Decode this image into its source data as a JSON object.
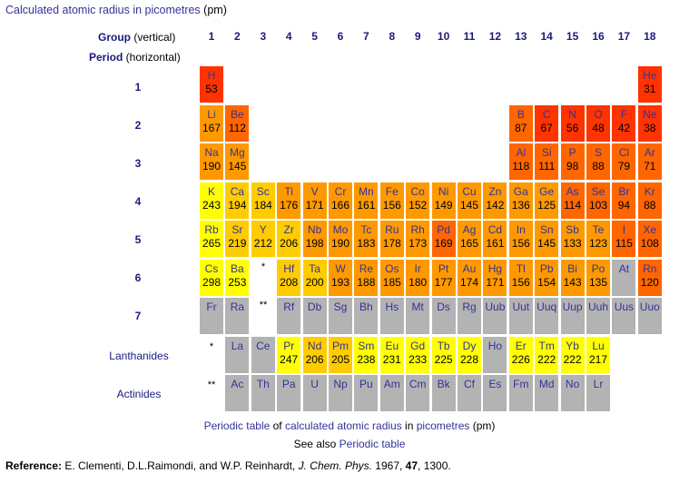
{
  "title": {
    "link": "Calculated atomic radius in picometres",
    "suffix": " (pm)"
  },
  "headers": {
    "group_word": "Group",
    "group_note": " (vertical)",
    "period_word": "Period",
    "period_note": " (horizontal)"
  },
  "groups": [
    "1",
    "2",
    "3",
    "4",
    "5",
    "6",
    "7",
    "8",
    "9",
    "10",
    "11",
    "12",
    "13",
    "14",
    "15",
    "16",
    "17",
    "18"
  ],
  "periods": [
    "1",
    "2",
    "3",
    "4",
    "5",
    "6",
    "7"
  ],
  "row_labels": {
    "lanthanides": "Lanthanides",
    "actinides": "Actinides"
  },
  "markers": {
    "lan": "*",
    "act": "**"
  },
  "colors": {
    "red": "#ff3300",
    "orange_red": "#ff6600",
    "orange": "#ff9900",
    "amber": "#ffcc00",
    "yellow": "#ffff00",
    "gray": "#b3b3b3"
  },
  "elements": [
    {
      "s": "H",
      "v": "53",
      "p": 1,
      "g": 1,
      "c": "red"
    },
    {
      "s": "He",
      "v": "31",
      "p": 1,
      "g": 18,
      "c": "red"
    },
    {
      "s": "Li",
      "v": "167",
      "p": 2,
      "g": 1,
      "c": "orange"
    },
    {
      "s": "Be",
      "v": "112",
      "p": 2,
      "g": 2,
      "c": "orange_red"
    },
    {
      "s": "B",
      "v": "87",
      "p": 2,
      "g": 13,
      "c": "orange_red"
    },
    {
      "s": "C",
      "v": "67",
      "p": 2,
      "g": 14,
      "c": "red"
    },
    {
      "s": "N",
      "v": "56",
      "p": 2,
      "g": 15,
      "c": "red"
    },
    {
      "s": "O",
      "v": "48",
      "p": 2,
      "g": 16,
      "c": "red"
    },
    {
      "s": "F",
      "v": "42",
      "p": 2,
      "g": 17,
      "c": "red"
    },
    {
      "s": "Ne",
      "v": "38",
      "p": 2,
      "g": 18,
      "c": "red"
    },
    {
      "s": "Na",
      "v": "190",
      "p": 3,
      "g": 1,
      "c": "orange"
    },
    {
      "s": "Mg",
      "v": "145",
      "p": 3,
      "g": 2,
      "c": "orange"
    },
    {
      "s": "Al",
      "v": "118",
      "p": 3,
      "g": 13,
      "c": "orange_red"
    },
    {
      "s": "Si",
      "v": "111",
      "p": 3,
      "g": 14,
      "c": "orange_red"
    },
    {
      "s": "P",
      "v": "98",
      "p": 3,
      "g": 15,
      "c": "orange_red"
    },
    {
      "s": "S",
      "v": "88",
      "p": 3,
      "g": 16,
      "c": "orange_red"
    },
    {
      "s": "Cl",
      "v": "79",
      "p": 3,
      "g": 17,
      "c": "orange_red"
    },
    {
      "s": "Ar",
      "v": "71",
      "p": 3,
      "g": 18,
      "c": "orange_red"
    },
    {
      "s": "K",
      "v": "243",
      "p": 4,
      "g": 1,
      "c": "yellow"
    },
    {
      "s": "Ca",
      "v": "194",
      "p": 4,
      "g": 2,
      "c": "amber"
    },
    {
      "s": "Sc",
      "v": "184",
      "p": 4,
      "g": 3,
      "c": "amber"
    },
    {
      "s": "Ti",
      "v": "176",
      "p": 4,
      "g": 4,
      "c": "orange"
    },
    {
      "s": "V",
      "v": "171",
      "p": 4,
      "g": 5,
      "c": "orange"
    },
    {
      "s": "Cr",
      "v": "166",
      "p": 4,
      "g": 6,
      "c": "orange"
    },
    {
      "s": "Mn",
      "v": "161",
      "p": 4,
      "g": 7,
      "c": "orange"
    },
    {
      "s": "Fe",
      "v": "156",
      "p": 4,
      "g": 8,
      "c": "orange"
    },
    {
      "s": "Co",
      "v": "152",
      "p": 4,
      "g": 9,
      "c": "orange"
    },
    {
      "s": "Ni",
      "v": "149",
      "p": 4,
      "g": 10,
      "c": "orange"
    },
    {
      "s": "Cu",
      "v": "145",
      "p": 4,
      "g": 11,
      "c": "orange"
    },
    {
      "s": "Zn",
      "v": "142",
      "p": 4,
      "g": 12,
      "c": "orange"
    },
    {
      "s": "Ga",
      "v": "136",
      "p": 4,
      "g": 13,
      "c": "orange"
    },
    {
      "s": "Ge",
      "v": "125",
      "p": 4,
      "g": 14,
      "c": "orange"
    },
    {
      "s": "As",
      "v": "114",
      "p": 4,
      "g": 15,
      "c": "orange_red"
    },
    {
      "s": "Se",
      "v": "103",
      "p": 4,
      "g": 16,
      "c": "orange_red"
    },
    {
      "s": "Br",
      "v": "94",
      "p": 4,
      "g": 17,
      "c": "orange_red"
    },
    {
      "s": "Kr",
      "v": "88",
      "p": 4,
      "g": 18,
      "c": "orange_red"
    },
    {
      "s": "Rb",
      "v": "265",
      "p": 5,
      "g": 1,
      "c": "yellow"
    },
    {
      "s": "Sr",
      "v": "219",
      "p": 5,
      "g": 2,
      "c": "amber"
    },
    {
      "s": "Y",
      "v": "212",
      "p": 5,
      "g": 3,
      "c": "amber"
    },
    {
      "s": "Zr",
      "v": "206",
      "p": 5,
      "g": 4,
      "c": "amber"
    },
    {
      "s": "Nb",
      "v": "198",
      "p": 5,
      "g": 5,
      "c": "orange"
    },
    {
      "s": "Mo",
      "v": "190",
      "p": 5,
      "g": 6,
      "c": "orange"
    },
    {
      "s": "Tc",
      "v": "183",
      "p": 5,
      "g": 7,
      "c": "orange"
    },
    {
      "s": "Ru",
      "v": "178",
      "p": 5,
      "g": 8,
      "c": "orange"
    },
    {
      "s": "Rh",
      "v": "173",
      "p": 5,
      "g": 9,
      "c": "orange"
    },
    {
      "s": "Pd",
      "v": "169",
      "p": 5,
      "g": 10,
      "c": "orange_red"
    },
    {
      "s": "Ag",
      "v": "165",
      "p": 5,
      "g": 11,
      "c": "orange"
    },
    {
      "s": "Cd",
      "v": "161",
      "p": 5,
      "g": 12,
      "c": "orange"
    },
    {
      "s": "In",
      "v": "156",
      "p": 5,
      "g": 13,
      "c": "orange"
    },
    {
      "s": "Sn",
      "v": "145",
      "p": 5,
      "g": 14,
      "c": "orange"
    },
    {
      "s": "Sb",
      "v": "133",
      "p": 5,
      "g": 15,
      "c": "orange"
    },
    {
      "s": "Te",
      "v": "123",
      "p": 5,
      "g": 16,
      "c": "orange"
    },
    {
      "s": "I",
      "v": "115",
      "p": 5,
      "g": 17,
      "c": "orange_red"
    },
    {
      "s": "Xe",
      "v": "108",
      "p": 5,
      "g": 18,
      "c": "orange_red"
    },
    {
      "s": "Cs",
      "v": "298",
      "p": 6,
      "g": 1,
      "c": "yellow"
    },
    {
      "s": "Ba",
      "v": "253",
      "p": 6,
      "g": 2,
      "c": "yellow"
    },
    {
      "s": "Hf",
      "v": "208",
      "p": 6,
      "g": 4,
      "c": "amber"
    },
    {
      "s": "Ta",
      "v": "200",
      "p": 6,
      "g": 5,
      "c": "amber"
    },
    {
      "s": "W",
      "v": "193",
      "p": 6,
      "g": 6,
      "c": "orange"
    },
    {
      "s": "Re",
      "v": "188",
      "p": 6,
      "g": 7,
      "c": "orange"
    },
    {
      "s": "Os",
      "v": "185",
      "p": 6,
      "g": 8,
      "c": "orange"
    },
    {
      "s": "Ir",
      "v": "180",
      "p": 6,
      "g": 9,
      "c": "orange"
    },
    {
      "s": "Pt",
      "v": "177",
      "p": 6,
      "g": 10,
      "c": "orange"
    },
    {
      "s": "Au",
      "v": "174",
      "p": 6,
      "g": 11,
      "c": "orange"
    },
    {
      "s": "Hg",
      "v": "171",
      "p": 6,
      "g": 12,
      "c": "orange"
    },
    {
      "s": "Tl",
      "v": "156",
      "p": 6,
      "g": 13,
      "c": "orange"
    },
    {
      "s": "Pb",
      "v": "154",
      "p": 6,
      "g": 14,
      "c": "orange"
    },
    {
      "s": "Bi",
      "v": "143",
      "p": 6,
      "g": 15,
      "c": "orange"
    },
    {
      "s": "Po",
      "v": "135",
      "p": 6,
      "g": 16,
      "c": "orange"
    },
    {
      "s": "At",
      "v": "",
      "p": 6,
      "g": 17,
      "c": "gray"
    },
    {
      "s": "Rn",
      "v": "120",
      "p": 6,
      "g": 18,
      "c": "orange_red"
    },
    {
      "s": "Fr",
      "v": "",
      "p": 7,
      "g": 1,
      "c": "gray"
    },
    {
      "s": "Ra",
      "v": "",
      "p": 7,
      "g": 2,
      "c": "gray"
    },
    {
      "s": "Rf",
      "v": "",
      "p": 7,
      "g": 4,
      "c": "gray"
    },
    {
      "s": "Db",
      "v": "",
      "p": 7,
      "g": 5,
      "c": "gray"
    },
    {
      "s": "Sg",
      "v": "",
      "p": 7,
      "g": 6,
      "c": "gray"
    },
    {
      "s": "Bh",
      "v": "",
      "p": 7,
      "g": 7,
      "c": "gray"
    },
    {
      "s": "Hs",
      "v": "",
      "p": 7,
      "g": 8,
      "c": "gray"
    },
    {
      "s": "Mt",
      "v": "",
      "p": 7,
      "g": 9,
      "c": "gray"
    },
    {
      "s": "Ds",
      "v": "",
      "p": 7,
      "g": 10,
      "c": "gray"
    },
    {
      "s": "Rg",
      "v": "",
      "p": 7,
      "g": 11,
      "c": "gray"
    },
    {
      "s": "Uub",
      "v": "",
      "p": 7,
      "g": 12,
      "c": "gray"
    },
    {
      "s": "Uut",
      "v": "",
      "p": 7,
      "g": 13,
      "c": "gray"
    },
    {
      "s": "Uuq",
      "v": "",
      "p": 7,
      "g": 14,
      "c": "gray"
    },
    {
      "s": "Uup",
      "v": "",
      "p": 7,
      "g": 15,
      "c": "gray"
    },
    {
      "s": "Uuh",
      "v": "",
      "p": 7,
      "g": 16,
      "c": "gray"
    },
    {
      "s": "Uus",
      "v": "",
      "p": 7,
      "g": 17,
      "c": "gray"
    },
    {
      "s": "Uuo",
      "v": "",
      "p": 7,
      "g": 18,
      "c": "gray"
    },
    {
      "s": "La",
      "v": "",
      "p": 8,
      "g": 2,
      "c": "gray"
    },
    {
      "s": "Ce",
      "v": "",
      "p": 8,
      "g": 3,
      "c": "gray"
    },
    {
      "s": "Pr",
      "v": "247",
      "p": 8,
      "g": 4,
      "c": "yellow"
    },
    {
      "s": "Nd",
      "v": "206",
      "p": 8,
      "g": 5,
      "c": "amber"
    },
    {
      "s": "Pm",
      "v": "205",
      "p": 8,
      "g": 6,
      "c": "amber"
    },
    {
      "s": "Sm",
      "v": "238",
      "p": 8,
      "g": 7,
      "c": "yellow"
    },
    {
      "s": "Eu",
      "v": "231",
      "p": 8,
      "g": 8,
      "c": "yellow"
    },
    {
      "s": "Gd",
      "v": "233",
      "p": 8,
      "g": 9,
      "c": "yellow"
    },
    {
      "s": "Tb",
      "v": "225",
      "p": 8,
      "g": 10,
      "c": "yellow"
    },
    {
      "s": "Dy",
      "v": "228",
      "p": 8,
      "g": 11,
      "c": "yellow"
    },
    {
      "s": "Ho",
      "v": "",
      "p": 8,
      "g": 12,
      "c": "gray"
    },
    {
      "s": "Er",
      "v": "226",
      "p": 8,
      "g": 13,
      "c": "yellow"
    },
    {
      "s": "Tm",
      "v": "222",
      "p": 8,
      "g": 14,
      "c": "yellow"
    },
    {
      "s": "Yb",
      "v": "222",
      "p": 8,
      "g": 15,
      "c": "yellow"
    },
    {
      "s": "Lu",
      "v": "217",
      "p": 8,
      "g": 16,
      "c": "yellow"
    },
    {
      "s": "Ac",
      "v": "",
      "p": 9,
      "g": 2,
      "c": "gray"
    },
    {
      "s": "Th",
      "v": "",
      "p": 9,
      "g": 3,
      "c": "gray"
    },
    {
      "s": "Pa",
      "v": "",
      "p": 9,
      "g": 4,
      "c": "gray"
    },
    {
      "s": "U",
      "v": "",
      "p": 9,
      "g": 5,
      "c": "gray"
    },
    {
      "s": "Np",
      "v": "",
      "p": 9,
      "g": 6,
      "c": "gray"
    },
    {
      "s": "Pu",
      "v": "",
      "p": 9,
      "g": 7,
      "c": "gray"
    },
    {
      "s": "Am",
      "v": "",
      "p": 9,
      "g": 8,
      "c": "gray"
    },
    {
      "s": "Cm",
      "v": "",
      "p": 9,
      "g": 9,
      "c": "gray"
    },
    {
      "s": "Bk",
      "v": "",
      "p": 9,
      "g": 10,
      "c": "gray"
    },
    {
      "s": "Cf",
      "v": "",
      "p": 9,
      "g": 11,
      "c": "gray"
    },
    {
      "s": "Es",
      "v": "",
      "p": 9,
      "g": 12,
      "c": "gray"
    },
    {
      "s": "Fm",
      "v": "",
      "p": 9,
      "g": 13,
      "c": "gray"
    },
    {
      "s": "Md",
      "v": "",
      "p": 9,
      "g": 14,
      "c": "gray"
    },
    {
      "s": "No",
      "v": "",
      "p": 9,
      "g": 15,
      "c": "gray"
    },
    {
      "s": "Lr",
      "v": "",
      "p": 9,
      "g": 16,
      "c": "gray"
    }
  ],
  "caption": {
    "link1": "Periodic table",
    "of": " of ",
    "link2": "calculated atomic radius",
    "in": " in ",
    "link3": "picometres",
    "pm": " (pm)",
    "see_also": "See also ",
    "link4": "Periodic table"
  },
  "reference": {
    "label": "Reference:",
    "authors": " E. Clementi, D.L.Raimondi, and W.P. Reinhardt, ",
    "journal": "J. Chem. Phys.",
    "year": " 1967, ",
    "volume": "47",
    "pages": ", 1300."
  }
}
